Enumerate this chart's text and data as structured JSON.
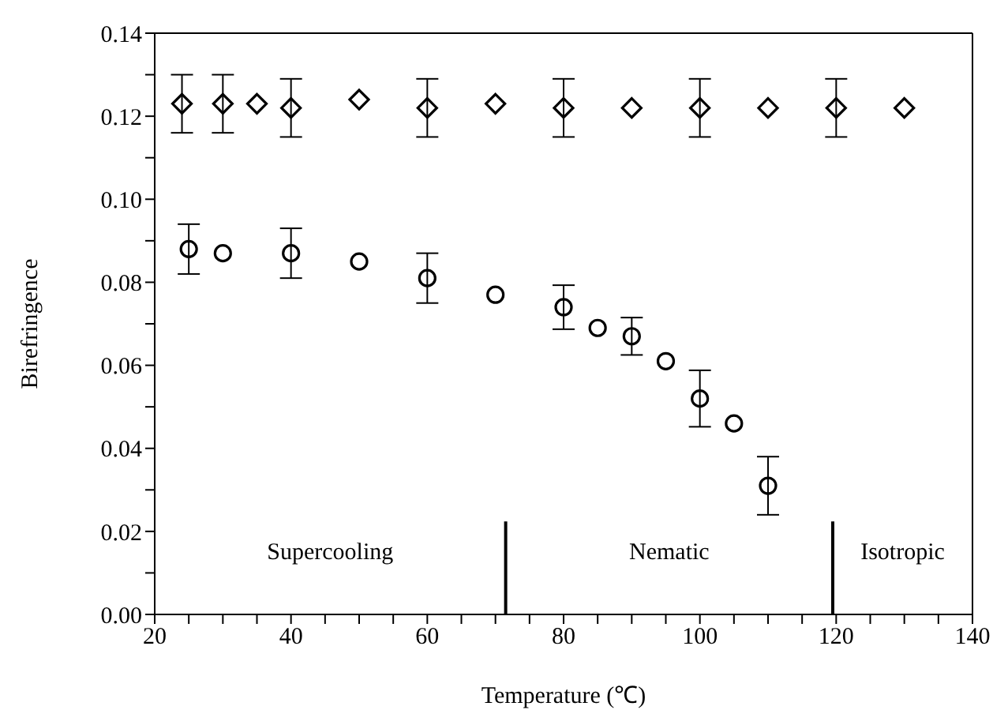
{
  "chart_data": {
    "type": "scatter",
    "xlabel": "Temperature (℃)",
    "ylabel": "Birefringence",
    "xlim": [
      20,
      140
    ],
    "xticks": [
      20,
      {
        "value": 25,
        "label": null
      },
      {
        "value": 30,
        "label": null
      },
      {
        "value": 35,
        "label": null
      },
      40,
      {
        "value": 45,
        "label": null
      },
      {
        "value": 50,
        "label": null
      },
      {
        "value": 55,
        "label": null
      },
      60,
      {
        "value": 65,
        "label": null
      },
      {
        "value": 70,
        "label": null
      },
      {
        "value": 75,
        "label": null
      },
      80,
      {
        "value": 85,
        "label": null
      },
      {
        "value": 90,
        "label": null
      },
      {
        "value": 95,
        "label": null
      },
      100,
      {
        "value": 105,
        "label": null
      },
      {
        "value": 110,
        "label": null
      },
      {
        "value": 115,
        "label": null
      },
      120,
      {
        "value": 125,
        "label": null
      },
      {
        "value": 130,
        "label": null
      },
      {
        "value": 135,
        "label": null
      },
      140
    ],
    "ylim": [
      0,
      0.14
    ],
    "yticks": [
      {
        "value": 0,
        "label": "0.00"
      },
      {
        "value": 0.01,
        "label": null
      },
      {
        "value": 0.02,
        "label": "0.02"
      },
      {
        "value": 0.03,
        "label": null
      },
      {
        "value": 0.04,
        "label": "0.04"
      },
      {
        "value": 0.05,
        "label": null
      },
      {
        "value": 0.06,
        "label": "0.06"
      },
      {
        "value": 0.07,
        "label": null
      },
      {
        "value": 0.08,
        "label": "0.08"
      },
      {
        "value": 0.09,
        "label": null
      },
      {
        "value": 0.1,
        "label": "0.10"
      },
      {
        "value": 0.11,
        "label": null
      },
      {
        "value": 0.12,
        "label": "0.12"
      },
      {
        "value": 0.13,
        "label": null
      },
      {
        "value": 0.14,
        "label": "0.14"
      }
    ],
    "grid": false,
    "legend": false,
    "series": [
      {
        "color": "#000000",
        "marker": "diamond",
        "x": [
          24,
          30,
          35,
          40,
          50,
          60,
          70,
          80,
          90,
          100,
          110,
          120,
          130
        ],
        "values": [
          0.123,
          0.123,
          0.123,
          0.122,
          0.124,
          0.122,
          0.123,
          0.122,
          0.122,
          0.122,
          0.122,
          0.122,
          0.122
        ],
        "errors": [
          0.007,
          0.007,
          null,
          0.007,
          null,
          0.007,
          null,
          0.007,
          null,
          0.007,
          null,
          0.007,
          null
        ]
      },
      {
        "color": "#000000",
        "marker": "circle",
        "x": [
          25,
          30,
          40,
          50,
          60,
          70,
          80,
          85,
          90,
          95,
          100,
          105,
          110
        ],
        "values": [
          0.088,
          0.087,
          0.087,
          0.085,
          0.081,
          0.077,
          0.074,
          0.069,
          0.067,
          0.061,
          0.052,
          0.046,
          0.031
        ],
        "errors": [
          0.006,
          null,
          0.006,
          null,
          0.006,
          null,
          0.0053,
          null,
          0.0045,
          null,
          0.0068,
          null,
          0.007
        ]
      }
    ],
    "ref_lines": [
      {
        "axis": "x",
        "value": 71.5,
        "color": "#000000"
      },
      {
        "axis": "x",
        "value": 119.5,
        "color": "#000000"
      }
    ],
    "annotations": [
      "Supercooling",
      "Nematic",
      "Isotropic"
    ]
  }
}
